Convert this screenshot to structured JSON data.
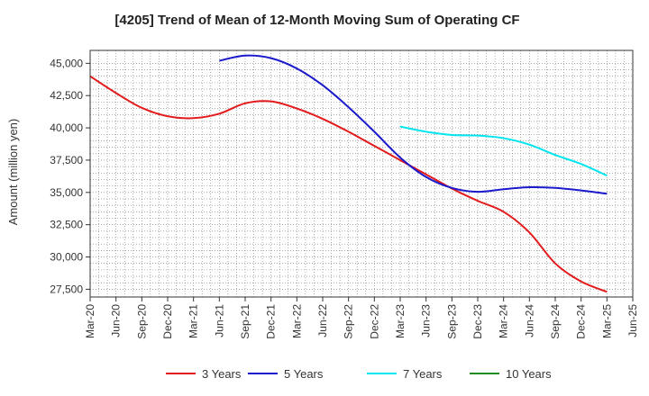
{
  "chart_data": {
    "type": "line",
    "title": "[4205]  Trend of Mean of 12-Month Moving Sum of Operating CF",
    "xlabel": "",
    "ylabel": "Amount (million yen)",
    "ylim": [
      26900,
      46000
    ],
    "yticks": [
      27500,
      30000,
      32500,
      35000,
      37500,
      40000,
      42500,
      45000
    ],
    "ytick_labels": [
      "27,500",
      "30,000",
      "32,500",
      "35,000",
      "37,500",
      "40,000",
      "42,500",
      "45,000"
    ],
    "xticks": [
      0,
      3,
      6,
      9,
      12,
      15,
      18,
      21,
      24,
      27,
      30,
      33,
      36,
      39,
      42,
      45,
      48,
      51,
      54,
      57,
      60,
      63
    ],
    "xtick_labels": [
      "Mar-20",
      "Jun-20",
      "Sep-20",
      "Dec-20",
      "Mar-21",
      "Jun-21",
      "Sep-21",
      "Dec-21",
      "Mar-22",
      "Jun-22",
      "Sep-22",
      "Dec-22",
      "Mar-23",
      "Jun-23",
      "Sep-23",
      "Dec-23",
      "Mar-24",
      "Jun-24",
      "Sep-24",
      "Dec-24",
      "Mar-25",
      "Jun-25"
    ],
    "grid": true,
    "legend_position": "bottom",
    "series": [
      {
        "name": "3 Years",
        "color": "#e31a1c",
        "x": [
          0,
          3,
          6,
          9,
          12,
          15,
          18,
          21,
          24,
          27,
          30,
          33,
          36,
          39,
          42,
          45,
          48,
          51,
          54,
          57,
          60
        ],
        "y": [
          44000,
          42700,
          41550,
          40900,
          40750,
          41100,
          41900,
          42050,
          41500,
          40700,
          39700,
          38600,
          37500,
          36400,
          35300,
          34350,
          33500,
          31900,
          29500,
          28100,
          27300
        ]
      },
      {
        "name": "5 Years",
        "color": "#1a1acc",
        "x": [
          15,
          18,
          21,
          24,
          27,
          30,
          33,
          36,
          39,
          42,
          45,
          48,
          51,
          54,
          57,
          60
        ],
        "y": [
          45200,
          45600,
          45400,
          44600,
          43300,
          41600,
          39700,
          37700,
          36200,
          35350,
          35050,
          35250,
          35400,
          35350,
          35150,
          34900
        ]
      },
      {
        "name": "7 Years",
        "color": "#00e5ee",
        "x": [
          36,
          39,
          42,
          45,
          48,
          51,
          54,
          57,
          60
        ],
        "y": [
          40100,
          39700,
          39450,
          39400,
          39200,
          38700,
          37900,
          37200,
          36300
        ]
      },
      {
        "name": "10 Years",
        "color": "#228b22",
        "x": [],
        "y": []
      }
    ]
  }
}
